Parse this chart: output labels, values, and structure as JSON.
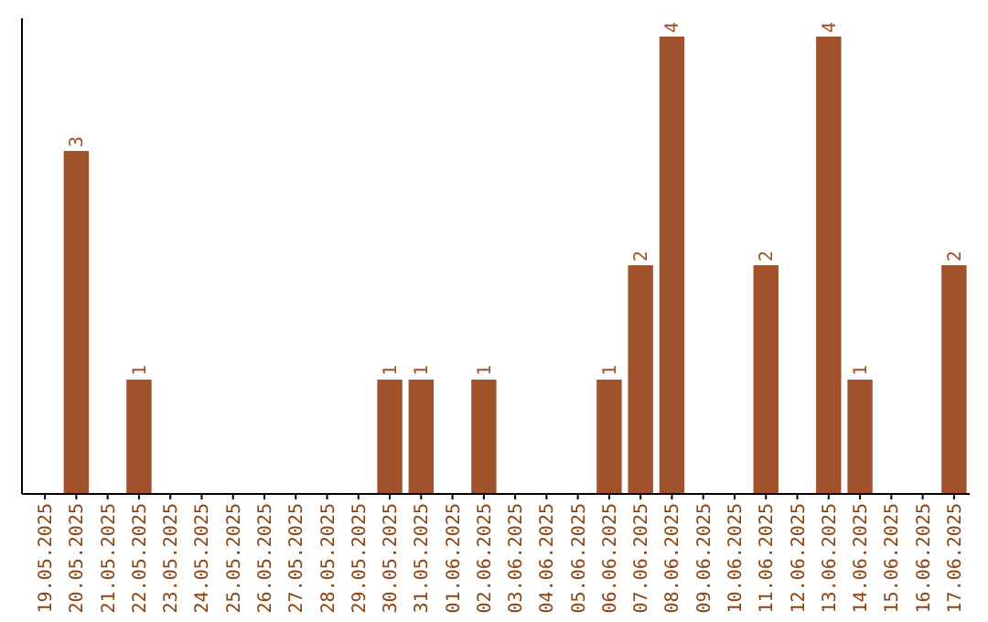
{
  "chart_data": {
    "type": "bar",
    "categories": [
      "19.05.2025",
      "20.05.2025",
      "21.05.2025",
      "22.05.2025",
      "23.05.2025",
      "24.05.2025",
      "25.05.2025",
      "26.05.2025",
      "27.05.2025",
      "28.05.2025",
      "29.05.2025",
      "30.05.2025",
      "31.05.2025",
      "01.06.2025",
      "02.06.2025",
      "03.06.2025",
      "04.06.2025",
      "05.06.2025",
      "06.06.2025",
      "07.06.2025",
      "08.06.2025",
      "09.06.2025",
      "10.06.2025",
      "11.06.2025",
      "12.06.2025",
      "13.06.2025",
      "14.06.2025",
      "15.06.2025",
      "16.06.2025",
      "17.06.2025"
    ],
    "values": [
      0,
      3,
      0,
      1,
      0,
      0,
      0,
      0,
      0,
      0,
      0,
      1,
      1,
      0,
      1,
      0,
      0,
      0,
      1,
      2,
      4,
      0,
      0,
      2,
      0,
      4,
      1,
      0,
      0,
      2
    ],
    "value_labels": [
      null,
      "3",
      null,
      "1",
      null,
      null,
      null,
      null,
      null,
      null,
      null,
      "1",
      "1",
      null,
      "1",
      null,
      null,
      null,
      "1",
      "2",
      "4",
      null,
      null,
      "2",
      null,
      "4",
      "1",
      null,
      null,
      "2"
    ],
    "color": "#a0522d",
    "tick_labels": "x"
  }
}
